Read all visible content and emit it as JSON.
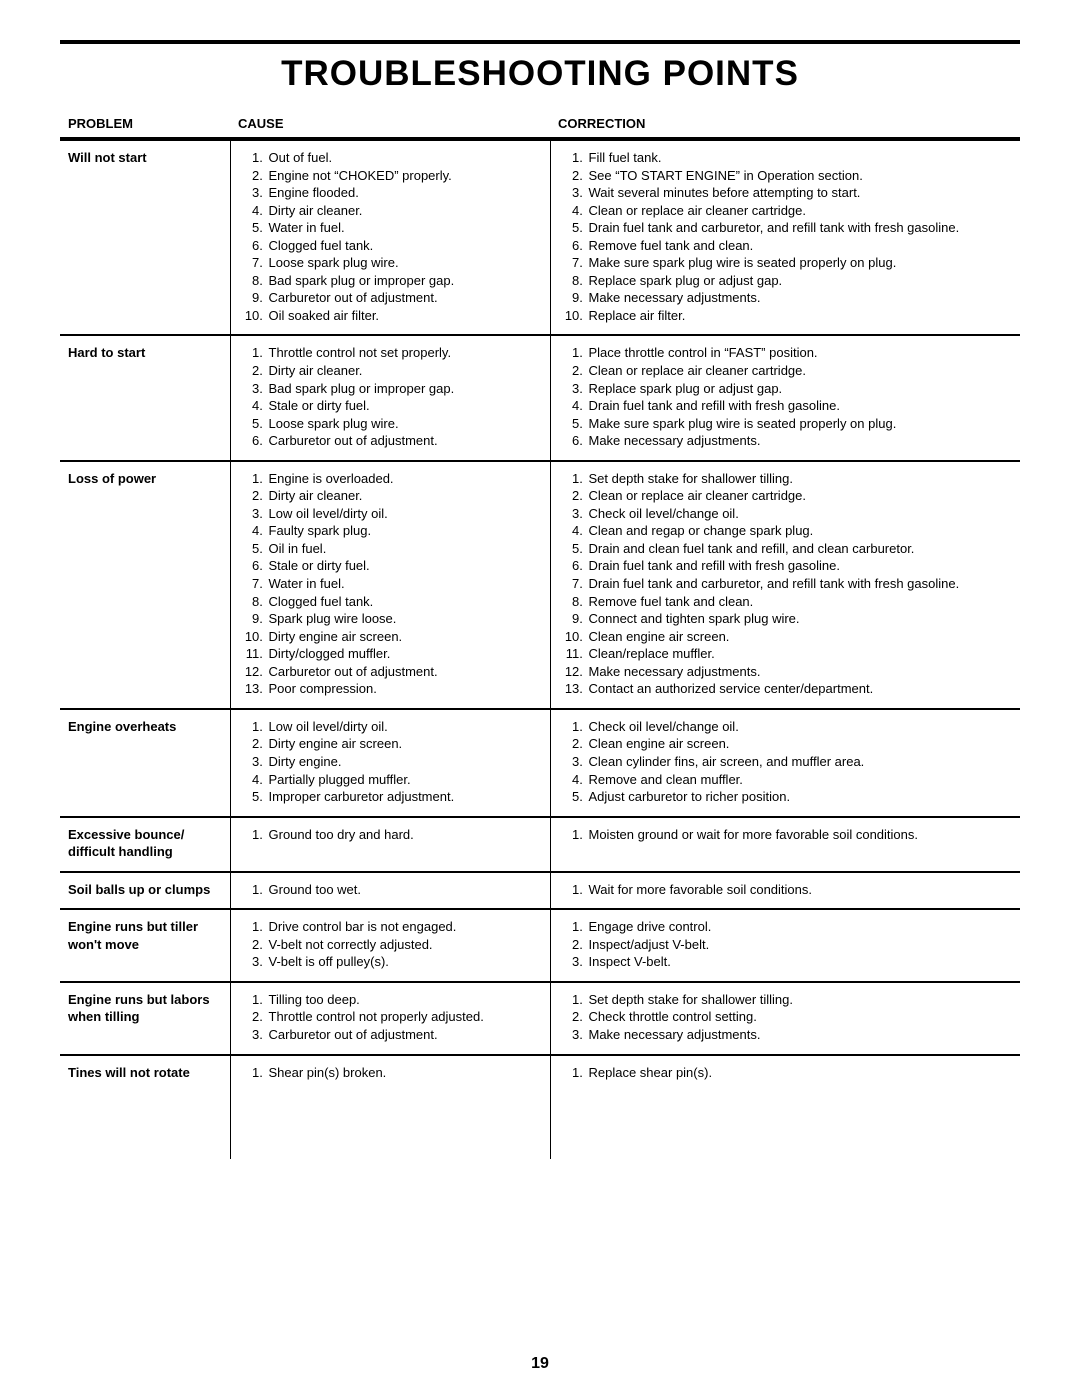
{
  "title": "TROUBLESHOOTING POINTS",
  "page_number": "19",
  "headers": {
    "problem": "PROBLEM",
    "cause": "CAUSE",
    "correction": "CORRECTION"
  },
  "rows": [
    {
      "problem": "Will not start",
      "causes": [
        "Out of fuel.",
        "Engine not “CHOKED” properly.",
        "Engine flooded.",
        "Dirty air cleaner.",
        "Water in fuel.",
        "Clogged fuel tank.",
        "Loose spark plug wire.",
        "Bad spark plug or improper gap.",
        "Carburetor out of adjustment.",
        "Oil soaked air filter."
      ],
      "corrections": [
        "Fill fuel tank.",
        "See “TO START ENGINE” in Operation section.",
        "Wait several minutes before attempting to start.",
        "Clean or replace air cleaner cartridge.",
        "Drain fuel tank and carburetor, and refill tank with fresh gasoline.",
        "Remove fuel tank and clean.",
        "Make sure spark plug wire is seated properly on plug.",
        "Replace spark plug or adjust gap.",
        "Make necessary adjustments.",
        "Replace air filter."
      ]
    },
    {
      "problem": "Hard to start",
      "causes": [
        "Throttle control not set properly.",
        "Dirty air  cleaner.",
        "Bad spark plug or improper gap.",
        "Stale or dirty fuel.",
        "Loose spark plug wire.",
        "Carburetor out of adjustment."
      ],
      "corrections": [
        "Place throttle control in “FAST” position.",
        "Clean or replace air cleaner cartridge.",
        "Replace spark plug or adjust gap.",
        "Drain fuel tank and refill with fresh gasoline.",
        "Make sure spark plug wire is seated properly on plug.",
        "Make necessary adjustments."
      ]
    },
    {
      "problem": "Loss of power",
      "causes": [
        "Engine is overloaded.",
        "Dirty air cleaner.",
        "Low oil level/dirty oil.",
        "Faulty spark plug.",
        "Oil in fuel.",
        "Stale or dirty fuel.",
        "Water in fuel.",
        "Clogged fuel tank.",
        "Spark plug wire loose.",
        "Dirty engine air screen.",
        "Dirty/clogged muffler.",
        "Carburetor out of adjustment.",
        "Poor compression."
      ],
      "corrections": [
        "Set depth stake for shallower tilling.",
        "Clean or replace air cleaner cartridge.",
        "Check oil level/change oil.",
        "Clean and regap or change spark plug.",
        "Drain and clean fuel tank and refill, and clean carburetor.",
        "Drain fuel tank and refill with fresh gasoline.",
        "Drain fuel tank and carburetor, and refill tank with fresh gasoline.",
        "Remove fuel tank and clean.",
        "Connect and tighten spark plug wire.",
        "Clean engine air screen.",
        "Clean/replace muffler.",
        "Make necessary adjustments.",
        "Contact an authorized service center/department."
      ]
    },
    {
      "problem": "Engine overheats",
      "causes": [
        "Low oil level/dirty oil.",
        "Dirty engine air screen.",
        "Dirty engine.",
        "Partially plugged muffler.",
        "Improper carburetor adjustment."
      ],
      "corrections": [
        "Check oil level/change oil.",
        "Clean engine air screen.",
        "Clean cylinder fins, air screen, and muffler area.",
        "Remove and clean muffler.",
        "Adjust carburetor to richer position."
      ]
    },
    {
      "problem": "Excessive bounce/ difficult handling",
      "causes": [
        "Ground too dry and hard."
      ],
      "corrections": [
        "Moisten ground or wait for more favorable soil conditions."
      ]
    },
    {
      "problem": "Soil balls up or clumps",
      "causes": [
        "Ground too wet."
      ],
      "corrections": [
        "Wait for more favorable soil conditions."
      ]
    },
    {
      "problem": "Engine runs but  tiller won't  move",
      "causes": [
        "Drive control bar is not engaged.",
        "V-belt not correctly adjusted.",
        "V-belt is off pulley(s)."
      ],
      "corrections": [
        "Engage drive control.",
        "Inspect/adjust V-belt.",
        "Inspect V-belt."
      ]
    },
    {
      "problem": "Engine runs but  labors when tilling",
      "causes": [
        "Tilling too deep.",
        "Throttle control not properly adjusted.",
        "Carburetor out of adjustment."
      ],
      "corrections": [
        "Set depth stake for shallower tilling.",
        "Check throttle control setting.",
        "Make necessary adjustments."
      ]
    },
    {
      "problem": "Tines will not rotate",
      "causes": [
        "Shear pin(s) broken."
      ],
      "corrections": [
        "Replace shear pin(s)."
      ]
    }
  ]
}
